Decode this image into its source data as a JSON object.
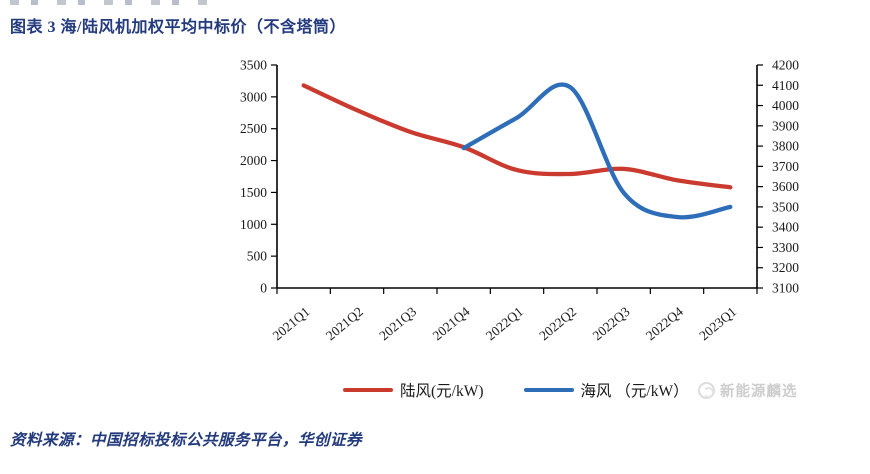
{
  "title": "图表 3 海/陆风机加权平均中标价（不含塔筒）",
  "source_note": "资料来源：中国招标投标公共服务平台，华创证券",
  "watermark": {
    "text": "新能源麟选",
    "icon": "logo-circle-icon"
  },
  "colors": {
    "heading_blue": "#233a7d",
    "onshore_red": "#cb3a2e",
    "offshore_blue": "#2e6db8",
    "axis_black": "#1a1a1a",
    "watermark_gray": "#cdcdcd"
  },
  "chart_data": {
    "type": "line",
    "title": "海/陆风机加权平均中标价（不含塔筒）",
    "categories": [
      "2021Q1",
      "2021Q2",
      "2021Q3",
      "2021Q4",
      "2022Q1",
      "2022Q2",
      "2022Q3",
      "2022Q4",
      "2023Q1"
    ],
    "series": [
      {
        "name": "陆风(元/kW)",
        "axis": "left",
        "color": "#cb3a2e",
        "start_index": 0,
        "values": [
          3180,
          2790,
          2450,
          2210,
          1850,
          1790,
          1870,
          1690,
          1580
        ]
      },
      {
        "name": "海风 （元/kW）",
        "axis": "right",
        "color": "#2e6db8",
        "start_index": 3,
        "values": [
          3790,
          3940,
          4090,
          3570,
          3450,
          3500
        ]
      }
    ],
    "left_axis": {
      "min": 0,
      "max": 3500,
      "step": 500
    },
    "right_axis": {
      "min": 3100,
      "max": 4200,
      "step": 100
    },
    "grid": false,
    "legend_position": "bottom",
    "x_label_rotation": -40
  }
}
